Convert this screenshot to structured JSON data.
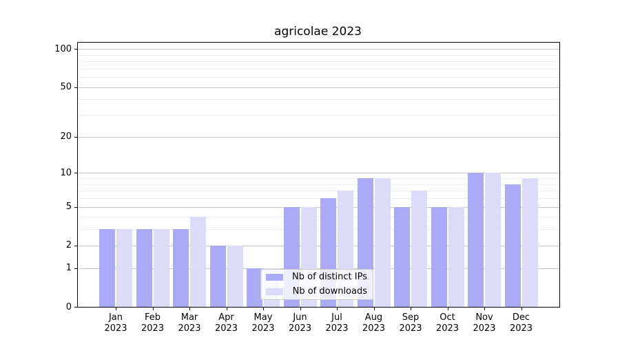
{
  "title": "agricolae 2023",
  "chart_data": {
    "type": "bar",
    "title": "agricolae 2023",
    "categories": [
      "Jan",
      "Feb",
      "Mar",
      "Apr",
      "May",
      "Jun",
      "Jul",
      "Aug",
      "Sep",
      "Oct",
      "Nov",
      "Dec"
    ],
    "category_sublabel": "2023",
    "series": [
      {
        "name": "Nb of distinct IPs",
        "color": "#aaaaf6",
        "values": [
          3,
          3,
          3,
          2,
          1,
          5,
          6,
          9,
          5,
          5,
          10,
          8
        ]
      },
      {
        "name": "Nb of downloads",
        "color": "#dcdcf9",
        "values": [
          3,
          3,
          4,
          2,
          1,
          5,
          7,
          9,
          7,
          5,
          10,
          9
        ]
      }
    ],
    "xlabel": "",
    "ylabel": "",
    "yscale": "log(1+x)",
    "ylim": [
      0,
      112
    ],
    "y_major_ticks": [
      0,
      1,
      2,
      5,
      10,
      20,
      50,
      100
    ],
    "y_minor_gridlines": [
      3,
      4,
      6,
      7,
      8,
      9,
      30,
      40,
      60,
      70,
      80,
      90
    ],
    "grid": true,
    "legend_position": "lower center"
  },
  "colors": {
    "grid_major": "#c6c6c6",
    "grid_minor": "#ececec",
    "spine": "#000000",
    "legend_border": "#cccccc",
    "background": "#ffffff"
  }
}
